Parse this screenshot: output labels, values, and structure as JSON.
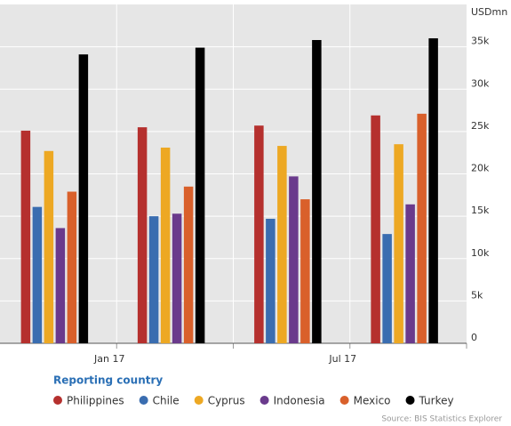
{
  "chart_data": {
    "type": "bar",
    "y_axis_label": "USDmn",
    "categories": [
      null,
      null,
      null,
      null
    ],
    "xtick_labels": [
      "Jan 17",
      "Jul 17"
    ],
    "series": [
      {
        "name": "Philippines",
        "color": "#b5302e",
        "values": [
          25100,
          25500,
          25700,
          26900
        ]
      },
      {
        "name": "Chile",
        "color": "#3a6db0",
        "values": [
          16100,
          15000,
          14700,
          12900
        ]
      },
      {
        "name": "Cyprus",
        "color": "#eda823",
        "values": [
          22700,
          23100,
          23300,
          23500
        ]
      },
      {
        "name": "Indonesia",
        "color": "#6a3a8c",
        "values": [
          13600,
          15300,
          19700,
          16400
        ]
      },
      {
        "name": "Mexico",
        "color": "#d9602b",
        "values": [
          17900,
          18500,
          17000,
          27100
        ]
      },
      {
        "name": "Turkey",
        "color": "#000000",
        "values": [
          34100,
          34900,
          35800,
          36000
        ]
      }
    ],
    "ylim": [
      0,
      40000
    ],
    "yticks": [
      0,
      {
        "value": 5000,
        "label": "5k"
      },
      {
        "value": 10000,
        "label": "10k"
      },
      {
        "value": 15000,
        "label": "15k"
      },
      {
        "value": 20000,
        "label": "20k"
      },
      {
        "value": 25000,
        "label": "25k"
      },
      {
        "value": 30000,
        "label": "30k"
      },
      {
        "value": 35000,
        "label": "35k"
      }
    ],
    "grid": true,
    "legend_title": "Reporting country",
    "source": "Source: BIS Statistics Explorer"
  }
}
